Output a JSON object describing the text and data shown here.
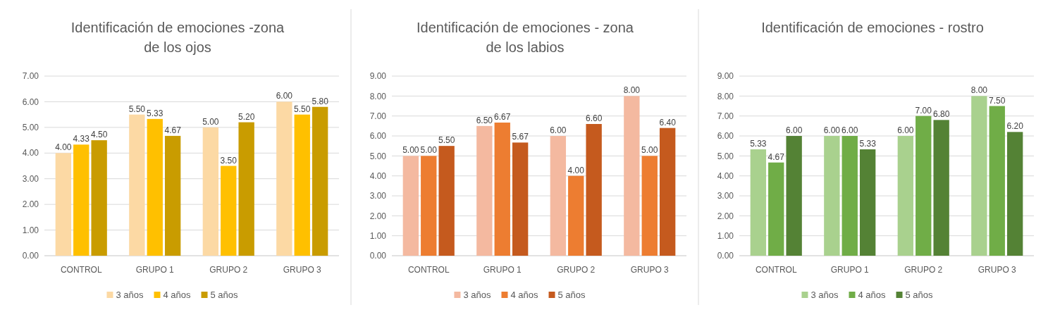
{
  "chart_data": [
    {
      "type": "bar",
      "title": "Identificación de emociones -zona de los ojos",
      "categories": [
        "CONTROL",
        "GRUPO 1",
        "GRUPO 2",
        "GRUPO 3"
      ],
      "ylim": [
        0,
        7
      ],
      "yticks": [
        {
          "value": 0,
          "label": "0.00"
        },
        {
          "value": 1,
          "label": "1.00"
        },
        {
          "value": 2,
          "label": "2.00"
        },
        {
          "value": 3,
          "label": "3.00"
        },
        {
          "value": 4,
          "label": "4.00"
        },
        {
          "value": 5,
          "label": "5.00"
        },
        {
          "value": 6,
          "label": "6.00"
        },
        {
          "value": 7,
          "label": "7.00"
        }
      ],
      "grid": "y",
      "legend": "bottom",
      "series": [
        {
          "name": "3 años",
          "color": "#fcd9a4",
          "values": [
            4.0,
            5.5,
            5.0,
            6.0
          ],
          "value_labels": [
            "4.00",
            "5.50",
            "5.00",
            "6.00"
          ]
        },
        {
          "name": "4 años",
          "color": "#ffc000",
          "values": [
            4.33,
            5.33,
            3.5,
            5.5
          ],
          "value_labels": [
            "4.33",
            "5.33",
            "3.50",
            "5.50"
          ]
        },
        {
          "name": "5 años",
          "color": "#c99c00",
          "values": [
            4.5,
            4.67,
            5.2,
            5.8
          ],
          "value_labels": [
            "4.50",
            "4.67",
            "5.20",
            "5.80"
          ]
        }
      ]
    },
    {
      "type": "bar",
      "title": "Identificación de emociones - zona de los labios",
      "categories": [
        "CONTROL",
        "GRUPO 1",
        "GRUPO 2",
        "GRUPO 3"
      ],
      "ylim": [
        0,
        9
      ],
      "yticks": [
        {
          "value": 0,
          "label": "0.00"
        },
        {
          "value": 1,
          "label": "1.00"
        },
        {
          "value": 2,
          "label": "2.00"
        },
        {
          "value": 3,
          "label": "3.00"
        },
        {
          "value": 4,
          "label": "4.00"
        },
        {
          "value": 5,
          "label": "5.00"
        },
        {
          "value": 6,
          "label": "6.00"
        },
        {
          "value": 7,
          "label": "7.00"
        },
        {
          "value": 8,
          "label": "8.00"
        },
        {
          "value": 9,
          "label": "9.00"
        }
      ],
      "grid": "y",
      "legend": "bottom",
      "series": [
        {
          "name": "3 años",
          "color": "#f4b9a0",
          "values": [
            5.0,
            6.5,
            6.0,
            8.0
          ],
          "value_labels": [
            "5.00",
            "6.50",
            "6.00",
            "8.00"
          ]
        },
        {
          "name": "4 años",
          "color": "#ed7d31",
          "values": [
            5.0,
            6.67,
            4.0,
            5.0
          ],
          "value_labels": [
            "5.00",
            "6.67",
            "4.00",
            "5.00"
          ]
        },
        {
          "name": "5 años",
          "color": "#c55a1e",
          "values": [
            5.5,
            5.67,
            6.6,
            6.4
          ],
          "value_labels": [
            "5.50",
            "5.67",
            "6.60",
            "6.40"
          ]
        }
      ]
    },
    {
      "type": "bar",
      "title": "Identificación de emociones - rostro",
      "categories": [
        "CONTROL",
        "GRUPO 1",
        "GRUPO 2",
        "GRUPO 3"
      ],
      "ylim": [
        0,
        9
      ],
      "yticks": [
        {
          "value": 0,
          "label": "0.00"
        },
        {
          "value": 1,
          "label": "1.00"
        },
        {
          "value": 2,
          "label": "2.00"
        },
        {
          "value": 3,
          "label": "3.00"
        },
        {
          "value": 4,
          "label": "4.00"
        },
        {
          "value": 5,
          "label": "5.00"
        },
        {
          "value": 6,
          "label": "6.00"
        },
        {
          "value": 7,
          "label": "7.00"
        },
        {
          "value": 8,
          "label": "8.00"
        },
        {
          "value": 9,
          "label": "9.00"
        }
      ],
      "grid": "y",
      "legend": "bottom",
      "series": [
        {
          "name": "3 años",
          "color": "#a9d18e",
          "values": [
            5.33,
            6.0,
            6.0,
            8.0
          ],
          "value_labels": [
            "5.33",
            "6.00",
            "6.00",
            "8.00"
          ]
        },
        {
          "name": "4 años",
          "color": "#70ad47",
          "values": [
            4.67,
            6.0,
            7.0,
            7.5
          ],
          "value_labels": [
            "4.67",
            "6.00",
            "7.00",
            "7.50"
          ]
        },
        {
          "name": "5 años",
          "color": "#548235",
          "values": [
            6.0,
            5.33,
            6.8,
            6.2
          ],
          "value_labels": [
            "6.00",
            "5.33",
            "6.80",
            "6.20"
          ]
        }
      ]
    }
  ]
}
